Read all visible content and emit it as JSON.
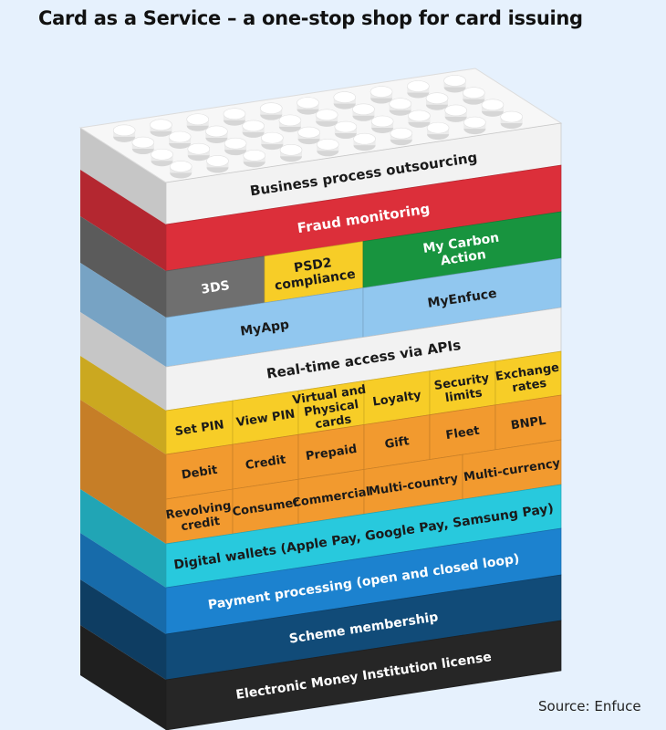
{
  "title": "Card as a Service – a one-stop shop for card issuing",
  "source": "Source: Enfuce",
  "colors": {
    "white": "#f2f2f2",
    "red": "#dc2f3a",
    "gray": "#6f6f6f",
    "yellow": "#f7cd27",
    "green": "#18943f",
    "lightblue": "#91c7ef",
    "orange": "#f29a2f",
    "cyan": "#28c9dd",
    "blue": "#1c82cf",
    "navy": "#114b78",
    "black": "#262626"
  },
  "layers": {
    "bpo": "Business process outsourcing",
    "fraud": "Fraud monitoring",
    "threeds": "3DS",
    "psd2": [
      "PSD2",
      "compliance"
    ],
    "carbon": [
      "My Carbon",
      "Action"
    ],
    "myenfuce": "MyEnfuce",
    "myapp": "MyApp",
    "realtime": "Real-time access via APIs",
    "setpin": "Set PIN",
    "viewpin": "View PIN",
    "virtual": [
      "Virtual and",
      "Physical",
      "cards"
    ],
    "loyalty": "Loyalty",
    "security": [
      "Security",
      "limits"
    ],
    "exchange": [
      "Exchange",
      "rates"
    ],
    "debit": "Debit",
    "credit": "Credit",
    "prepaid": "Prepaid",
    "gift": "Gift",
    "fleet": "Fleet",
    "bnpl": "BNPL",
    "revolving": [
      "Revolving",
      "credit"
    ],
    "consumer": "Consumer",
    "commercial": "Commercial",
    "multicountry": "Multi-country",
    "multicurrency": "Multi-currency",
    "wallets": "Digital wallets (Apple Pay, Google Pay, Samsung Pay)",
    "payment": "Payment processing (open and closed loop)",
    "scheme": "Scheme membership",
    "emi": "Electronic Money Institution license"
  }
}
